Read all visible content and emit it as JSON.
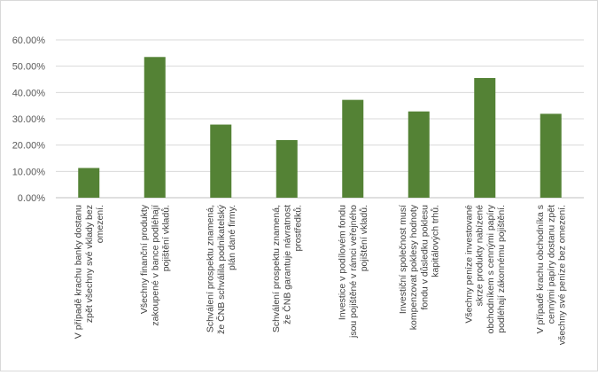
{
  "chart_data": {
    "type": "bar",
    "title": "",
    "xlabel": "",
    "ylabel": "",
    "ylim": [
      0,
      0.6
    ],
    "ytick_values": [
      0,
      0.1,
      0.2,
      0.3,
      0.4,
      0.5,
      0.6
    ],
    "ytick_labels": [
      "0.00%",
      "10.00%",
      "20.00%",
      "30.00%",
      "40.00%",
      "50.00%",
      "60.00%"
    ],
    "grid": true,
    "legend": "none",
    "bar_color": "#548235",
    "categories": [
      [
        "V případě krachu banky dostanu",
        "zpět všechny své vklady bez",
        "omezení."
      ],
      [
        "Všechny finanční produkty",
        "zakoupené v bance podléhají",
        "pojištění vkladů."
      ],
      [
        "Schválení prospektu znamená,",
        "že ČNB  schválila podnikatelský",
        "plán dané firmy."
      ],
      [
        "Schválení prospektu znamená,",
        "že ČNB garantuje návratnost",
        "prostředků."
      ],
      [
        "Investice v podílovém fondu",
        "jsou pojištěné v rámci veřejného",
        "pojištění vkladů."
      ],
      [
        "Investiční společnost musí",
        "kompenzovat poklesy hodnoty",
        "fondu v důsledku poklesu",
        "kapitálových trhů."
      ],
      [
        "Všechny peníze investované",
        "skrze produkty nabízené",
        "obchodníkem s cennými papíry",
        "podléhají zákonnému pojištění."
      ],
      [
        "V případě krachu obchodníka s",
        "cennými papíry dostanu zpět",
        "všechny své peníze bez omezení."
      ]
    ],
    "values": [
      0.113,
      0.535,
      0.278,
      0.219,
      0.372,
      0.328,
      0.455,
      0.319
    ]
  }
}
